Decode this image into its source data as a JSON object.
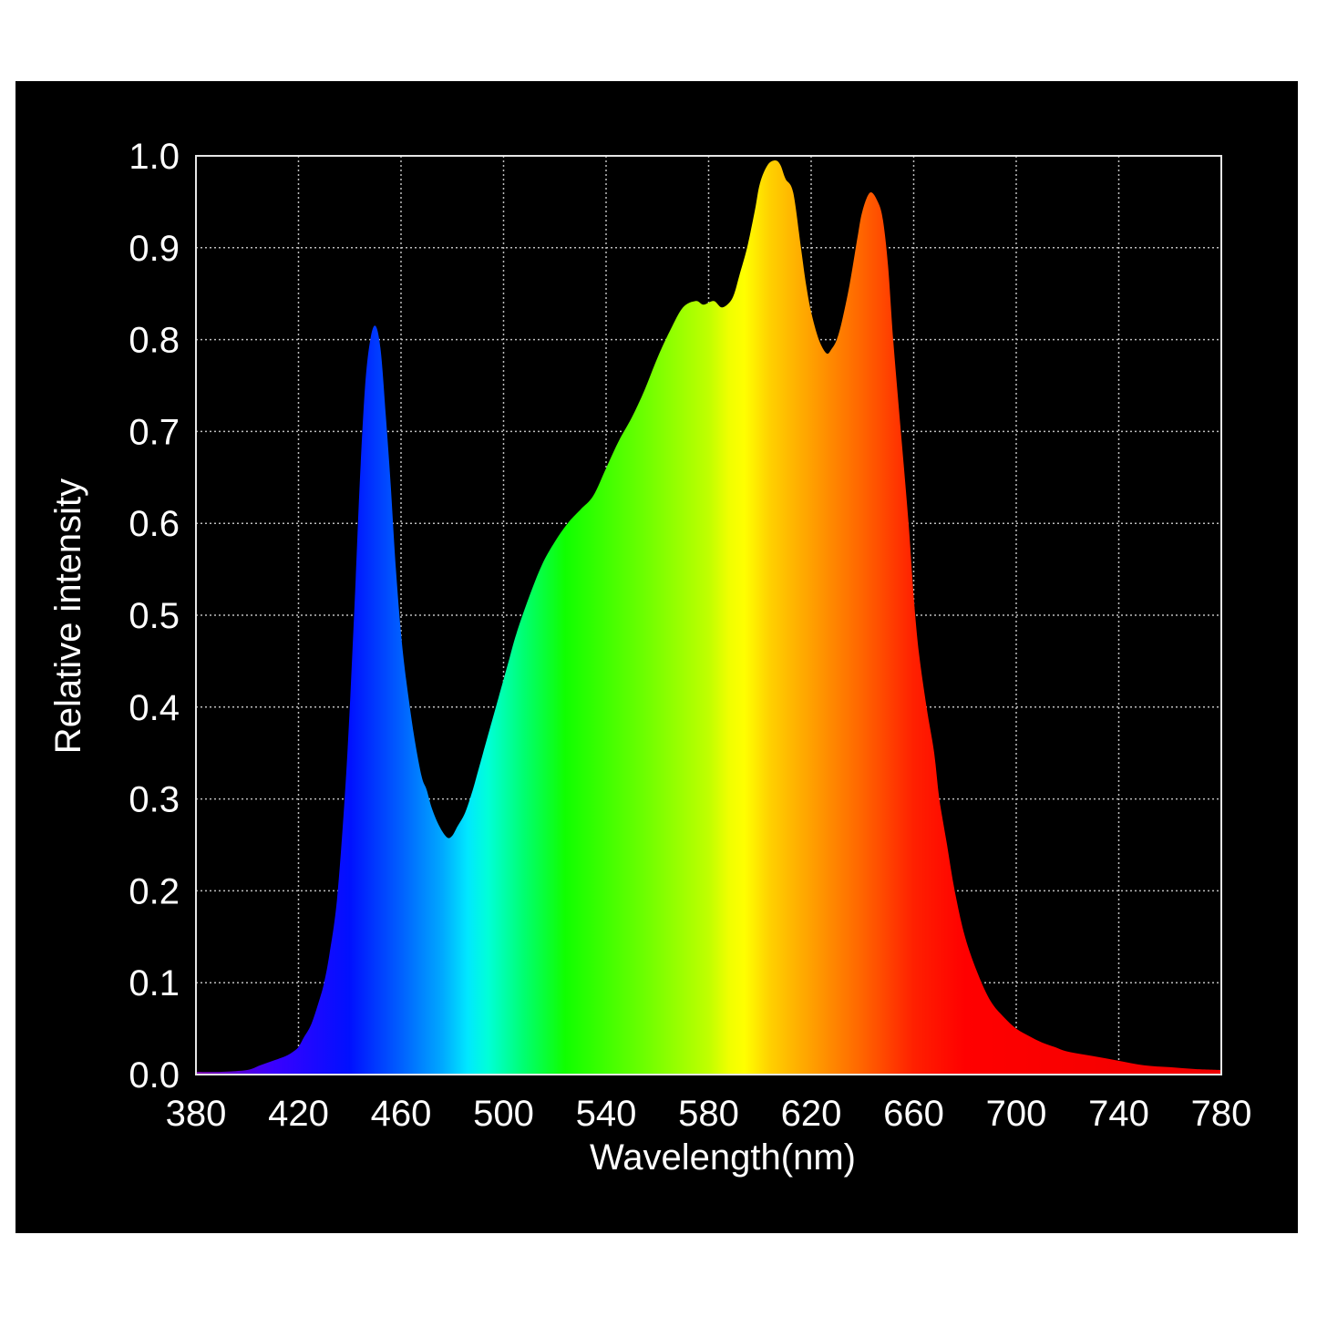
{
  "chart_data": {
    "type": "area",
    "title": "",
    "xlabel": "Wavelength(nm)",
    "ylabel": "Relative intensity",
    "xlim": [
      380,
      780
    ],
    "ylim": [
      0.0,
      1.0
    ],
    "x_ticks": [
      "380",
      "420",
      "460",
      "500",
      "540",
      "580",
      "620",
      "660",
      "700",
      "740",
      "780"
    ],
    "y_ticks": [
      "0.0",
      "0.1",
      "0.2",
      "0.3",
      "0.4",
      "0.5",
      "0.6",
      "0.7",
      "0.8",
      "0.9",
      "1.0"
    ],
    "grid": true,
    "legend": "none",
    "fill": "visible spectrum color gradient",
    "series": [
      {
        "x": [
          380,
          390,
          400,
          405,
          410,
          415,
          418,
          420,
          422,
          425,
          428,
          430,
          432,
          435,
          438,
          440,
          442,
          444,
          446,
          448,
          450,
          452,
          454,
          456,
          458,
          460,
          462,
          465,
          468,
          470,
          472,
          475,
          478,
          480,
          482,
          485,
          488,
          490,
          492,
          495,
          498,
          500,
          502,
          505,
          510,
          515,
          520,
          525,
          530,
          535,
          540,
          545,
          550,
          555,
          560,
          565,
          570,
          575,
          578,
          582,
          585,
          588,
          590,
          592,
          595,
          598,
          600,
          603,
          606,
          608,
          610,
          613,
          616,
          618,
          620,
          623,
          626,
          628,
          630,
          632,
          635,
          638,
          640,
          643,
          646,
          648,
          650,
          652,
          655,
          658,
          660,
          662,
          665,
          668,
          670,
          673,
          676,
          680,
          685,
          690,
          695,
          700,
          705,
          710,
          715,
          720,
          730,
          740,
          750,
          760,
          770,
          780
        ],
        "y": [
          0.003,
          0.003,
          0.005,
          0.01,
          0.015,
          0.02,
          0.025,
          0.03,
          0.04,
          0.055,
          0.08,
          0.1,
          0.13,
          0.19,
          0.3,
          0.4,
          0.52,
          0.65,
          0.75,
          0.8,
          0.815,
          0.79,
          0.72,
          0.64,
          0.55,
          0.48,
          0.43,
          0.37,
          0.325,
          0.31,
          0.29,
          0.27,
          0.258,
          0.26,
          0.27,
          0.285,
          0.31,
          0.33,
          0.35,
          0.38,
          0.41,
          0.43,
          0.45,
          0.48,
          0.52,
          0.555,
          0.58,
          0.6,
          0.615,
          0.63,
          0.66,
          0.69,
          0.715,
          0.745,
          0.78,
          0.81,
          0.835,
          0.842,
          0.838,
          0.842,
          0.835,
          0.84,
          0.85,
          0.87,
          0.9,
          0.94,
          0.97,
          0.99,
          0.995,
          0.99,
          0.975,
          0.96,
          0.9,
          0.86,
          0.83,
          0.8,
          0.785,
          0.79,
          0.8,
          0.82,
          0.86,
          0.91,
          0.94,
          0.96,
          0.95,
          0.93,
          0.88,
          0.8,
          0.7,
          0.6,
          0.52,
          0.46,
          0.4,
          0.35,
          0.3,
          0.25,
          0.2,
          0.15,
          0.11,
          0.08,
          0.063,
          0.05,
          0.042,
          0.035,
          0.03,
          0.025,
          0.02,
          0.015,
          0.01,
          0.008,
          0.006,
          0.005
        ]
      }
    ]
  }
}
